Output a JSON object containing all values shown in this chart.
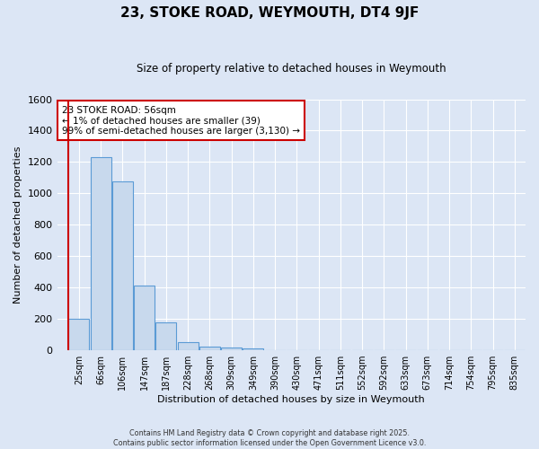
{
  "title": "23, STOKE ROAD, WEYMOUTH, DT4 9JF",
  "subtitle": "Size of property relative to detached houses in Weymouth",
  "xlabel": "Distribution of detached houses by size in Weymouth",
  "ylabel": "Number of detached properties",
  "categories": [
    "25sqm",
    "66sqm",
    "106sqm",
    "147sqm",
    "187sqm",
    "228sqm",
    "268sqm",
    "309sqm",
    "349sqm",
    "390sqm",
    "430sqm",
    "471sqm",
    "511sqm",
    "552sqm",
    "592sqm",
    "633sqm",
    "673sqm",
    "714sqm",
    "754sqm",
    "795sqm",
    "835sqm"
  ],
  "values": [
    200,
    1230,
    1075,
    415,
    180,
    50,
    25,
    15,
    10,
    0,
    0,
    0,
    0,
    0,
    0,
    0,
    0,
    0,
    0,
    0,
    0
  ],
  "bar_color": "#c8d9ed",
  "bar_edge_color": "#5b9bd5",
  "background_color": "#dce6f5",
  "grid_color": "#ffffff",
  "vline_color": "#cc0000",
  "annotation_text": "23 STOKE ROAD: 56sqm\n← 1% of detached houses are smaller (39)\n99% of semi-detached houses are larger (3,130) →",
  "annotation_box_color": "#ffffff",
  "annotation_box_edge": "#cc0000",
  "ylim": [
    0,
    1600
  ],
  "yticks": [
    0,
    200,
    400,
    600,
    800,
    1000,
    1200,
    1400,
    1600
  ],
  "footer_line1": "Contains HM Land Registry data © Crown copyright and database right 2025.",
  "footer_line2": "Contains public sector information licensed under the Open Government Licence v3.0."
}
